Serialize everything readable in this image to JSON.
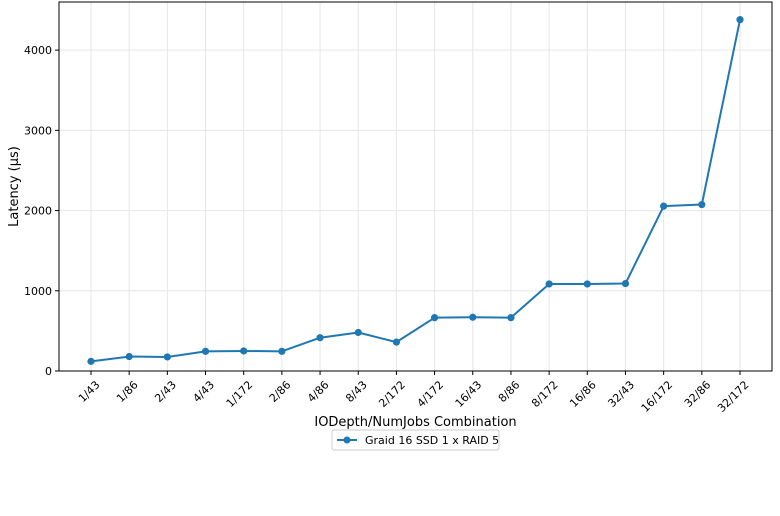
{
  "chart_data": {
    "type": "line",
    "title": "",
    "xlabel": "IODepth/NumJobs Combination",
    "ylabel": "Latency (µs)",
    "categories": [
      "1/43",
      "1/86",
      "2/43",
      "4/43",
      "1/172",
      "2/86",
      "4/86",
      "8/43",
      "2/172",
      "4/172",
      "16/43",
      "8/86",
      "8/172",
      "16/86",
      "32/43",
      "16/172",
      "32/86",
      "32/172"
    ],
    "series": [
      {
        "name": "Graid 16 SSD 1 x RAID 5",
        "color": "#1f77b4",
        "values": [
          120,
          180,
          175,
          245,
          250,
          245,
          415,
          480,
          360,
          665,
          670,
          665,
          1085,
          1085,
          1090,
          2055,
          2075,
          4380
        ]
      }
    ],
    "ylim": [
      0,
      4600
    ],
    "yticks": [
      0,
      1000,
      2000,
      3000,
      4000
    ],
    "grid": true,
    "legend_position": "bottom-center"
  }
}
